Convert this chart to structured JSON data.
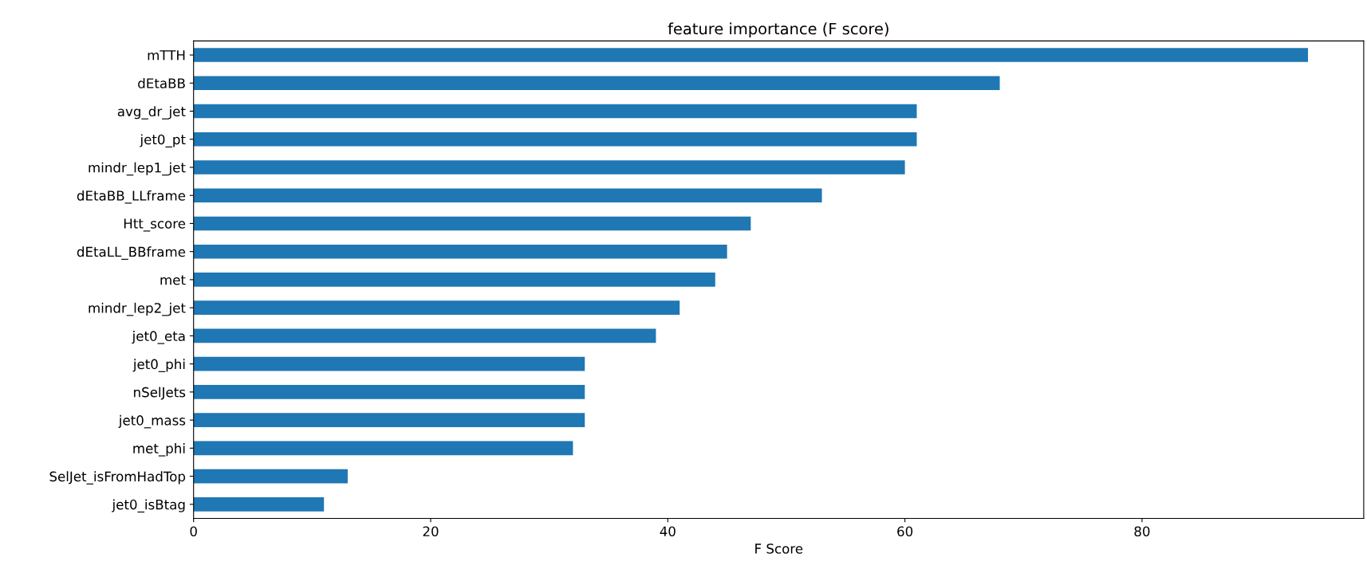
{
  "chart_data": {
    "type": "bar",
    "orientation": "horizontal",
    "title": "feature importance (F score)",
    "xlabel": "F Score",
    "categories": [
      "mTTH",
      "dEtaBB",
      "avg_dr_jet",
      "jet0_pt",
      "mindr_lep1_jet",
      "dEtaBB_LLframe",
      "Htt_score",
      "dEtaLL_BBframe",
      "met",
      "mindr_lep2_jet",
      "jet0_eta",
      "jet0_phi",
      "nSelJets",
      "jet0_mass",
      "met_phi",
      "SelJet_isFromHadTop",
      "jet0_isBtag"
    ],
    "values": [
      94,
      68,
      61,
      61,
      60,
      53,
      47,
      45,
      44,
      41,
      39,
      33,
      33,
      33,
      32,
      13,
      11
    ],
    "color": "#1f77b4",
    "xlim": [
      0,
      98.7
    ],
    "xticks": [
      0,
      20,
      40,
      60,
      80
    ],
    "grid": false,
    "legend": false
  }
}
